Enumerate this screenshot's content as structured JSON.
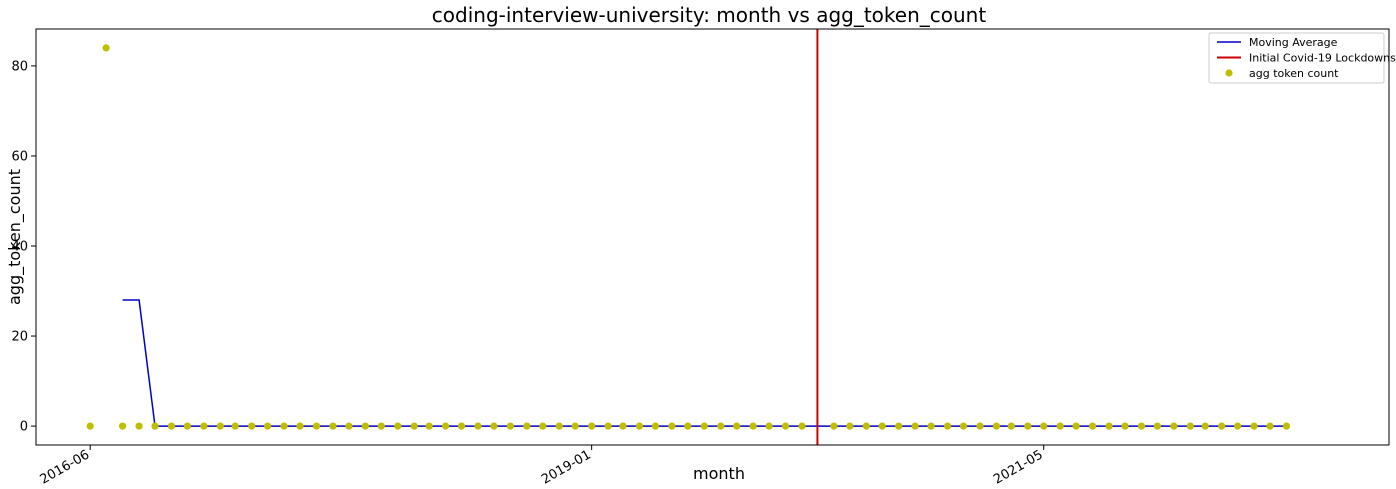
{
  "chart_data": {
    "type": "scatter",
    "title": "coding-interview-university: month vs agg_token_count",
    "xlabel": "month",
    "ylabel": "agg_token_count",
    "x_ticks": [
      "2016-06",
      "2019-01",
      "2021-05"
    ],
    "y_ticks": [
      0,
      20,
      40,
      60,
      80
    ],
    "ylim": [
      -4.2,
      88.2
    ],
    "xlim": [
      "2016-02-20",
      "2023-02-10"
    ],
    "legend_position": "top-right",
    "series": [
      {
        "name": "agg token count",
        "kind": "scatter",
        "color": "#bfbf00",
        "x": [
          "2016-06-01",
          "2016-07-01",
          "2016-08-01",
          "2016-09-01",
          "2016-10-01",
          "2016-11-01",
          "2016-12-01",
          "2017-01-01",
          "2017-02-01",
          "2017-03-01",
          "2017-04-01",
          "2017-05-01",
          "2017-06-01",
          "2017-07-01",
          "2017-08-01",
          "2017-09-01",
          "2017-10-01",
          "2017-11-01",
          "2017-12-01",
          "2018-01-01",
          "2018-02-01",
          "2018-03-01",
          "2018-04-01",
          "2018-05-01",
          "2018-06-01",
          "2018-07-01",
          "2018-08-01",
          "2018-09-01",
          "2018-10-01",
          "2018-11-01",
          "2018-12-01",
          "2019-01-01",
          "2019-02-01",
          "2019-03-01",
          "2019-04-01",
          "2019-05-01",
          "2019-06-01",
          "2019-07-01",
          "2019-08-01",
          "2019-09-01",
          "2019-10-01",
          "2019-11-01",
          "2019-12-01",
          "2020-01-01",
          "2020-02-01",
          "2020-04-01",
          "2020-05-01",
          "2020-06-01",
          "2020-07-01",
          "2020-08-01",
          "2020-09-01",
          "2020-10-01",
          "2020-11-01",
          "2020-12-01",
          "2021-01-01",
          "2021-02-01",
          "2021-03-01",
          "2021-04-01",
          "2021-05-01",
          "2021-06-01",
          "2021-07-01",
          "2021-08-01",
          "2021-09-01",
          "2021-10-01",
          "2021-11-01",
          "2021-12-01",
          "2022-01-01",
          "2022-02-01",
          "2022-03-01",
          "2022-04-01",
          "2022-05-01",
          "2022-06-01",
          "2022-07-01",
          "2022-08-01"
        ],
        "values": [
          0,
          84,
          0,
          0,
          0,
          0,
          0,
          0,
          0,
          0,
          0,
          0,
          0,
          0,
          0,
          0,
          0,
          0,
          0,
          0,
          0,
          0,
          0,
          0,
          0,
          0,
          0,
          0,
          0,
          0,
          0,
          0,
          0,
          0,
          0,
          0,
          0,
          0,
          0,
          0,
          0,
          0,
          0,
          0,
          0,
          0,
          0,
          0,
          0,
          0,
          0,
          0,
          0,
          0,
          0,
          0,
          0,
          0,
          0,
          0,
          0,
          0,
          0,
          0,
          0,
          0,
          0,
          0,
          0,
          0,
          0,
          0,
          0,
          0
        ]
      },
      {
        "name": "Moving Average",
        "kind": "line",
        "color": "#0000cc",
        "x": [
          "2016-08-01",
          "2016-09-01",
          "2016-10-01",
          "2022-08-01"
        ],
        "values": [
          28,
          28,
          0,
          0
        ]
      },
      {
        "name": "Initial Covid-19 Lockdowns",
        "kind": "vline",
        "color": "#cc0000",
        "x": "2020-03-01"
      }
    ]
  }
}
